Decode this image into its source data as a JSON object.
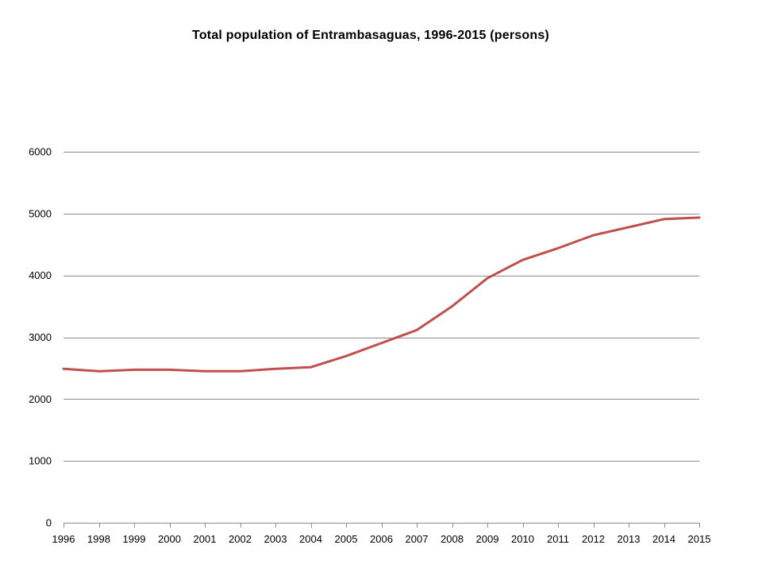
{
  "chart_data": {
    "type": "line",
    "title": "Total population  of Entrambasaguas,  1996-2015 (persons)",
    "xlabel": "",
    "ylabel": "",
    "ylim": [
      0,
      6000
    ],
    "y_ticks": [
      0,
      1000,
      2000,
      3000,
      4000,
      5000,
      6000
    ],
    "grid": true,
    "legend": "none",
    "categories": [
      "1996",
      "1998",
      "1999",
      "2000",
      "2001",
      "2002",
      "2003",
      "2004",
      "2005",
      "2006",
      "2007",
      "2008",
      "2009",
      "2010",
      "2011",
      "2012",
      "2013",
      "2014",
      "2015"
    ],
    "series": [
      {
        "name": "Total population",
        "color": "#c0504d",
        "values": [
          2490,
          2450,
          2475,
          2475,
          2450,
          2450,
          2490,
          2515,
          2695,
          2905,
          3115,
          3500,
          3955,
          4250,
          4440,
          4650,
          4780,
          4910,
          4935
        ]
      }
    ]
  }
}
